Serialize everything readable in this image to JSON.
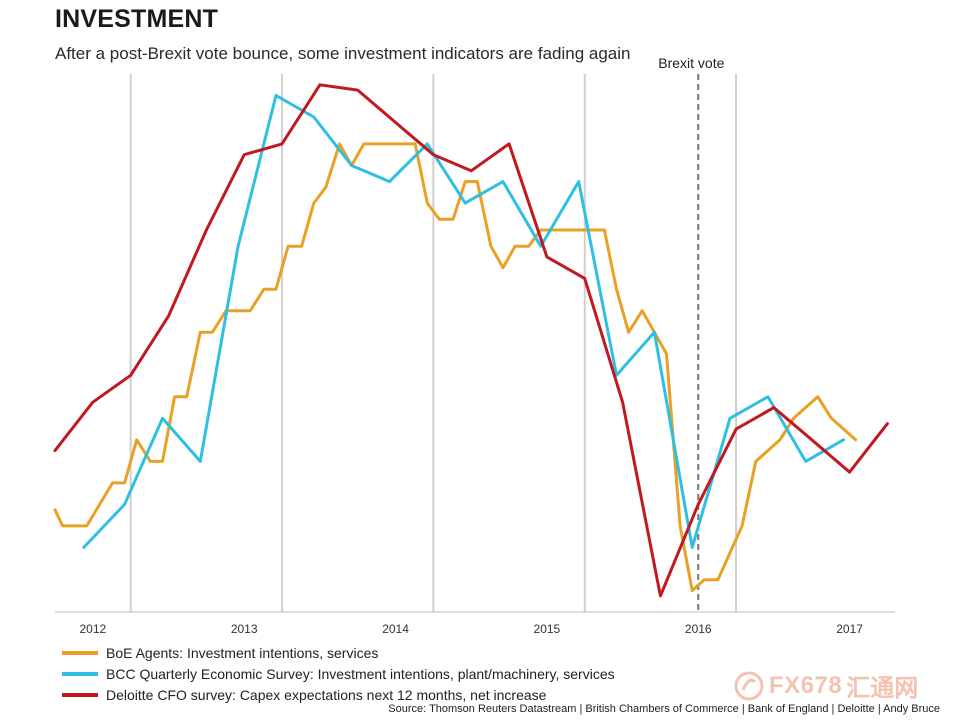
{
  "header": {
    "title": "INVESTMENT",
    "subtitle": "After a post-Brexit vote bounce, some investment indicators are fading again"
  },
  "chart_data": {
    "type": "line",
    "title": "INVESTMENT",
    "subtitle": "After a post-Brexit vote bounce, some investment indicators are fading again",
    "xlabel": "",
    "ylabel": "",
    "xlim": [
      2011.75,
      2017.3
    ],
    "ylim": [
      0,
      100
    ],
    "grid": "vertical lines at year boundaries",
    "year_ticks": [
      {
        "label": "2012",
        "x": 2012.0
      },
      {
        "label": "2013",
        "x": 2013.0
      },
      {
        "label": "2014",
        "x": 2014.0
      },
      {
        "label": "2015",
        "x": 2015.0
      },
      {
        "label": "2016",
        "x": 2016.0
      },
      {
        "label": "2017",
        "x": 2017.0
      }
    ],
    "gridlines_x": [
      2012.25,
      2013.25,
      2014.25,
      2015.25,
      2016.25
    ],
    "annotation": {
      "label": "Brexit vote",
      "x": 2016.0
    },
    "series": [
      {
        "name": "BoE Agents: Investment intentions, services",
        "color": "#e8a124",
        "x": [
          2011.75,
          2011.8,
          2011.96,
          2012.13,
          2012.21,
          2012.29,
          2012.38,
          2012.46,
          2012.54,
          2012.62,
          2012.71,
          2012.79,
          2012.88,
          2013.04,
          2013.13,
          2013.21,
          2013.29,
          2013.38,
          2013.46,
          2013.54,
          2013.63,
          2013.71,
          2013.79,
          2013.96,
          2014.13,
          2014.21,
          2014.29,
          2014.38,
          2014.46,
          2014.54,
          2014.63,
          2014.71,
          2014.79,
          2014.88,
          2014.96,
          2015.04,
          2015.13,
          2015.29,
          2015.38,
          2015.46,
          2015.54,
          2015.63,
          2015.71,
          2015.79,
          2015.88,
          2015.96,
          2016.04,
          2016.13,
          2016.29,
          2016.38,
          2016.54,
          2016.63,
          2016.79,
          2016.88,
          2017.04
        ],
        "values": [
          19,
          16,
          16,
          24,
          24,
          32,
          28,
          28,
          40,
          40,
          52,
          52,
          56,
          56,
          60,
          60,
          68,
          68,
          76,
          79,
          87,
          83,
          87,
          87,
          87,
          76,
          73,
          73,
          80,
          80,
          68,
          64,
          68,
          68,
          71,
          71,
          71,
          71,
          71,
          60,
          52,
          56,
          52,
          48,
          16,
          4,
          6,
          6,
          16,
          28,
          32,
          36,
          40,
          36,
          32
        ]
      },
      {
        "name": "BCC Quarterly Economic Survey: Investment intentions, plant/machinery, services",
        "color": "#2fbfe3",
        "x": [
          2011.94,
          2012.21,
          2012.46,
          2012.71,
          2012.96,
          2013.21,
          2013.46,
          2013.71,
          2013.96,
          2014.21,
          2014.46,
          2014.71,
          2014.96,
          2015.21,
          2015.46,
          2015.71,
          2015.96,
          2016.21,
          2016.46,
          2016.71,
          2016.96
        ],
        "values": [
          12,
          20,
          36,
          28,
          68,
          96,
          92,
          83,
          80,
          87,
          76,
          80,
          68,
          80,
          44,
          52,
          12,
          36,
          40,
          28,
          32
        ]
      },
      {
        "name": "Deloitte CFO survey: Capex expectations next 12 months, net increase",
        "color": "#c0191f",
        "x": [
          2011.75,
          2012.0,
          2012.25,
          2012.5,
          2012.75,
          2013.0,
          2013.25,
          2013.5,
          2013.75,
          2014.0,
          2014.25,
          2014.5,
          2014.75,
          2015.0,
          2015.25,
          2015.5,
          2015.75,
          2016.0,
          2016.25,
          2016.5,
          2016.75,
          2017.0,
          2017.25
        ],
        "values": [
          30,
          39,
          44,
          55,
          71,
          85,
          87,
          98,
          97,
          91,
          85,
          82,
          87,
          66,
          62,
          39,
          3,
          20,
          34,
          38,
          32,
          26,
          35
        ]
      }
    ]
  },
  "legend": {
    "items": [
      {
        "label": "BoE Agents: Investment intentions, services",
        "color": "#e8a124"
      },
      {
        "label": "BCC Quarterly Economic Survey: Investment intentions, plant/machinery, services",
        "color": "#2fbfe3"
      },
      {
        "label": "Deloitte CFO survey: Capex expectations next 12 months, net increase",
        "color": "#c0191f"
      }
    ]
  },
  "footer": {
    "source": "Source: Thomson Reuters Datastream | British Chambers of Commerce | Bank of England | Deloitte | Andy Bruce"
  },
  "watermark": {
    "text": "FX678",
    "cn": "汇通网",
    "color": "#f2b9a4"
  }
}
